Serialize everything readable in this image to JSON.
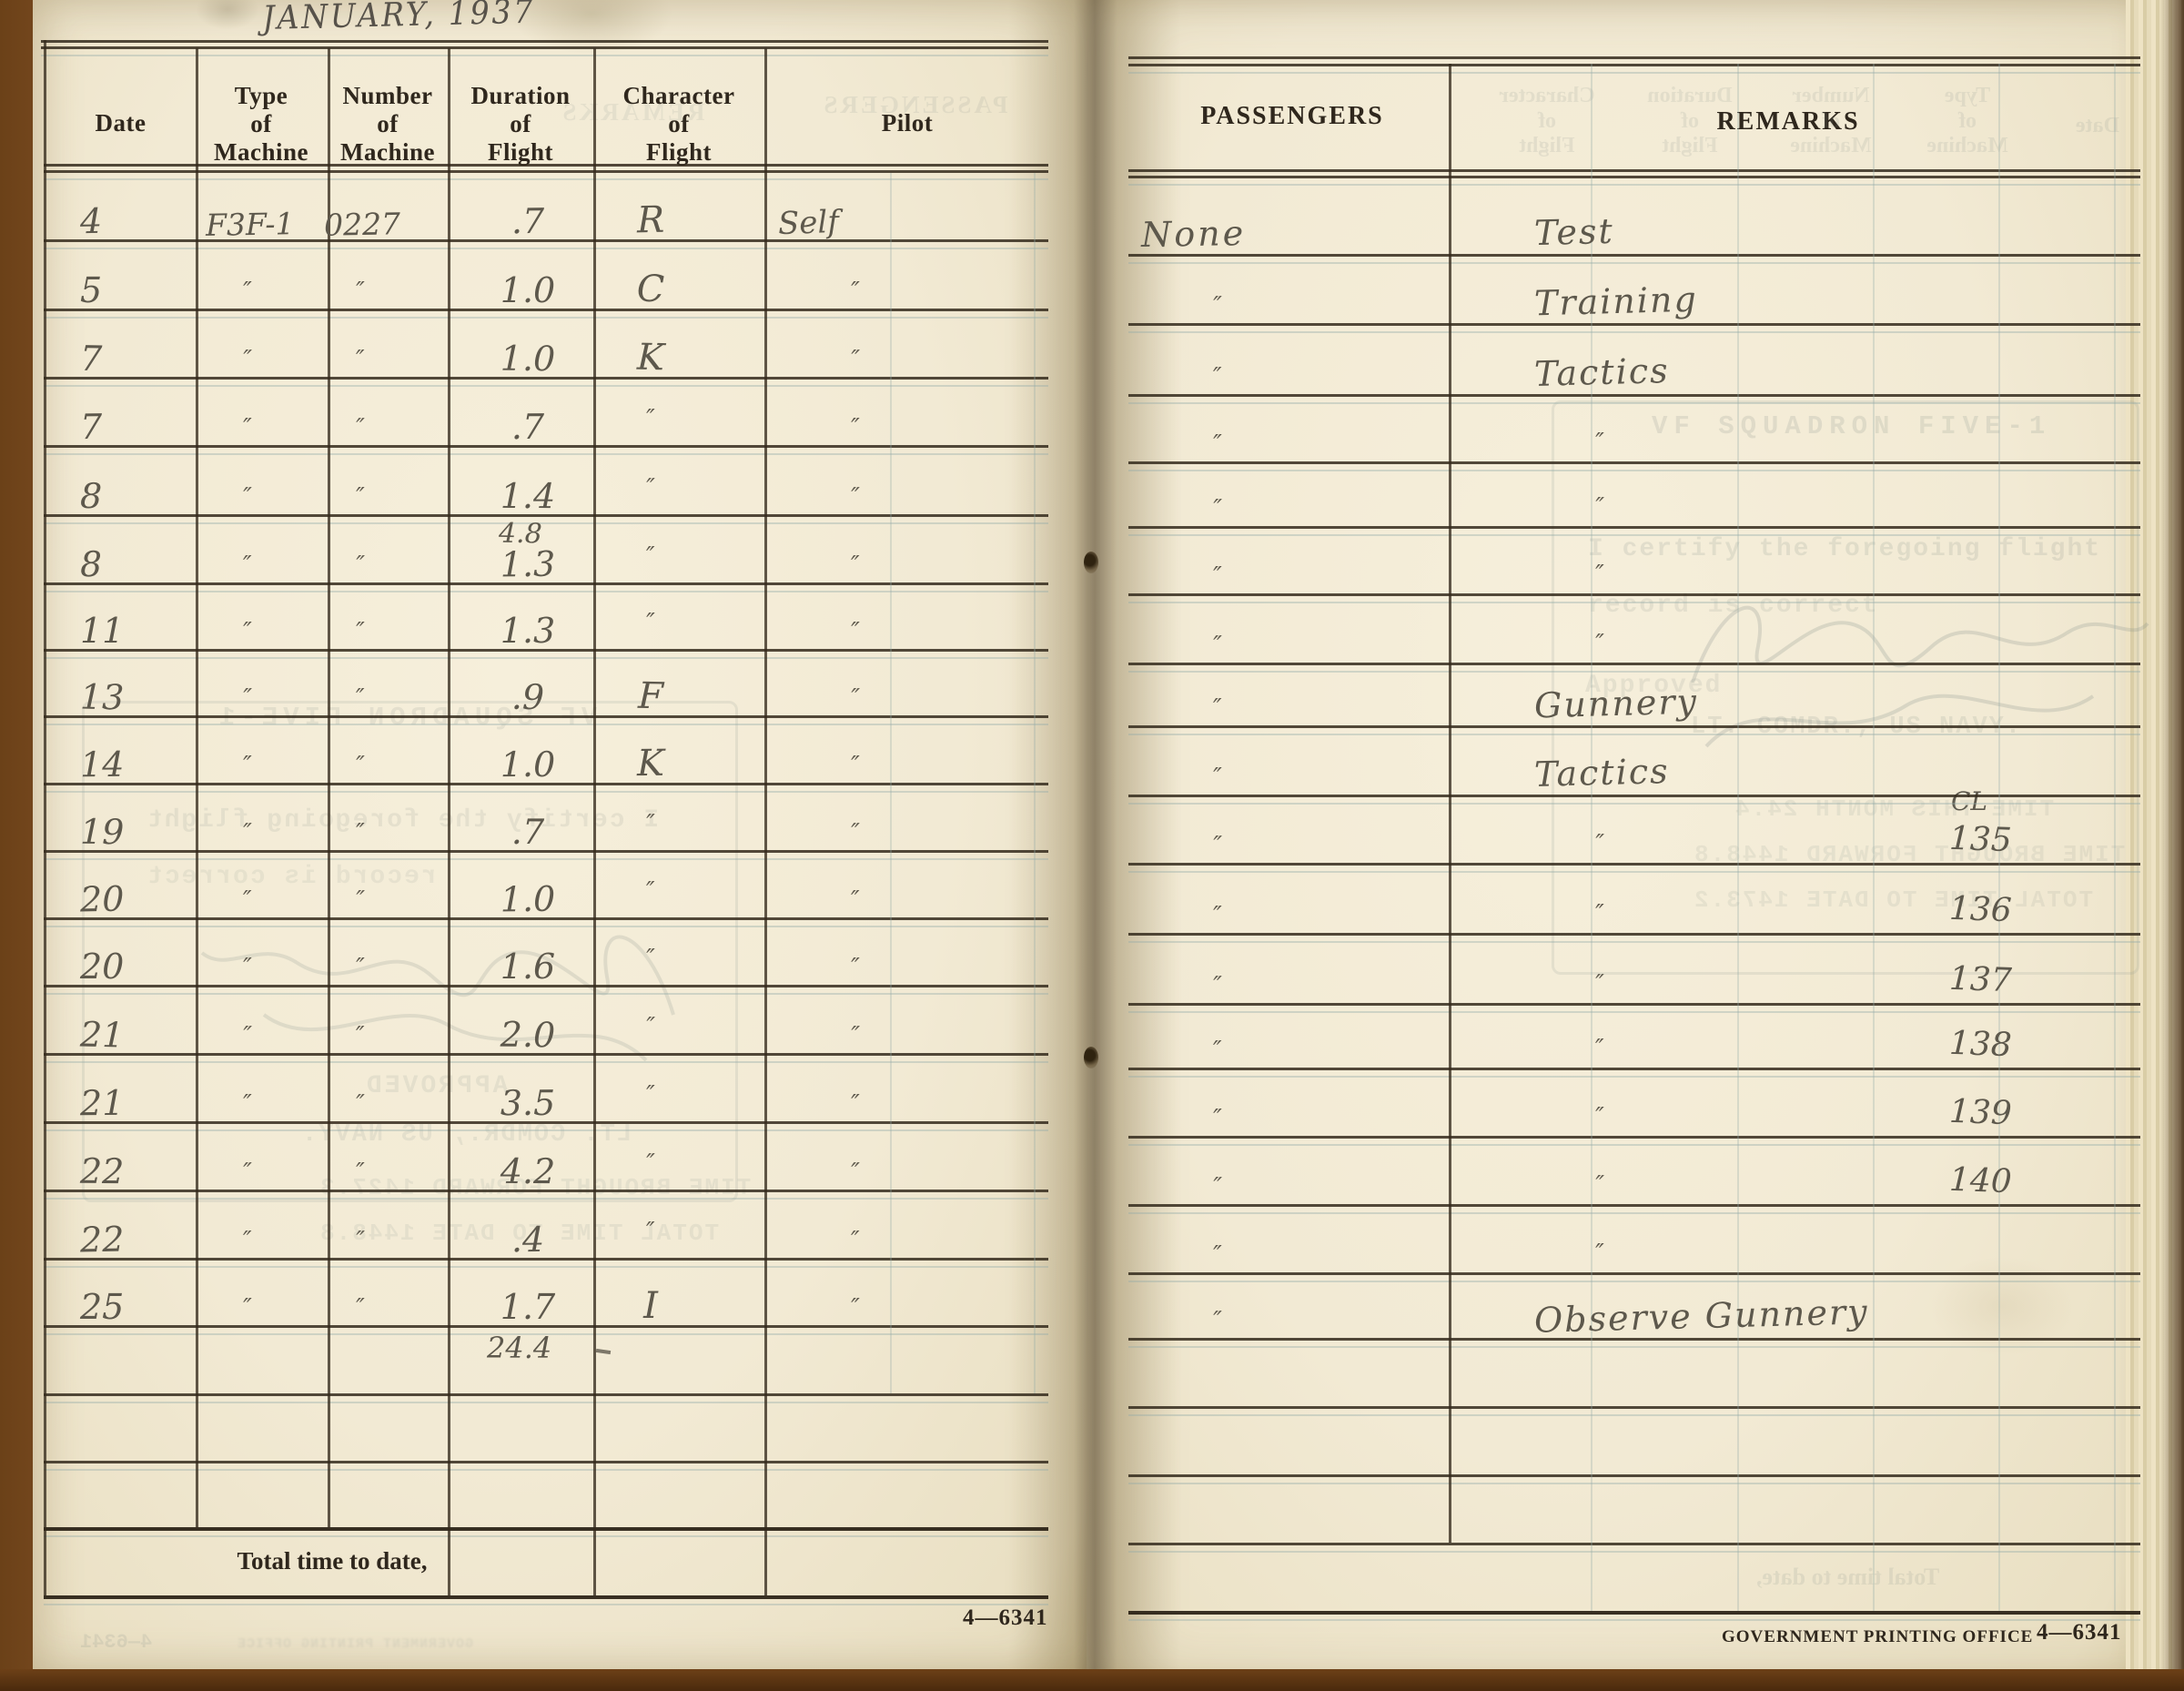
{
  "title": "JANUARY, 1937",
  "colors": {
    "paper": "#f2ead4",
    "cover_brown": "#7a4a20",
    "pencil": "#5d584c",
    "ink": "#2f271d",
    "ghost": "#7f8b87"
  },
  "left_page": {
    "headers": [
      "Date",
      "Type\nof\nMachine",
      "Number\nof\nMachine",
      "Duration\nof\nFlight",
      "Character\nof\nFlight",
      "Pilot"
    ],
    "rows": [
      {
        "date": "4",
        "type": "F3F-1",
        "number": "0227",
        "duration": ".7",
        "character": "R",
        "pilot": "Self"
      },
      {
        "date": "5",
        "type": "″",
        "number": "″",
        "duration": "1.0",
        "character": "C",
        "pilot": "″"
      },
      {
        "date": "7",
        "type": "″",
        "number": "″",
        "duration": "1.0",
        "character": "K",
        "pilot": "″"
      },
      {
        "date": "7",
        "type": "″",
        "number": "″",
        "duration": ".7",
        "character": "″",
        "pilot": "″"
      },
      {
        "date": "8",
        "type": "″",
        "number": "″",
        "duration": "1.4",
        "character": "″",
        "pilot": "″",
        "week_subtotal": "4.8"
      },
      {
        "date": "8",
        "type": "″",
        "number": "″",
        "duration": "1.3",
        "character": "″",
        "pilot": "″"
      },
      {
        "date": "11",
        "type": "″",
        "number": "″",
        "duration": "1.3",
        "character": "″",
        "pilot": "″"
      },
      {
        "date": "13",
        "type": "″",
        "number": "″",
        "duration": ".9",
        "character": "F",
        "pilot": "″"
      },
      {
        "date": "14",
        "type": "″",
        "number": "″",
        "duration": "1.0",
        "character": "K",
        "pilot": "″"
      },
      {
        "date": "19",
        "type": "″",
        "number": "″",
        "duration": ".7",
        "character": "″",
        "pilot": "″"
      },
      {
        "date": "20",
        "type": "″",
        "number": "″",
        "duration": "1.0",
        "character": "″",
        "pilot": "″"
      },
      {
        "date": "20",
        "type": "″",
        "number": "″",
        "duration": "1.6",
        "character": "″",
        "pilot": "″"
      },
      {
        "date": "21",
        "type": "″",
        "number": "″",
        "duration": "2.0",
        "character": "″",
        "pilot": "″"
      },
      {
        "date": "21",
        "type": "″",
        "number": "″",
        "duration": "3.5",
        "character": "″",
        "pilot": "″"
      },
      {
        "date": "22",
        "type": "″",
        "number": "″",
        "duration": "4.2",
        "character": "″",
        "pilot": "″"
      },
      {
        "date": "22",
        "type": "″",
        "number": "″",
        "duration": ".4",
        "character": "″",
        "pilot": "″"
      },
      {
        "date": "25",
        "type": "″",
        "number": "″",
        "duration": "1.7",
        "character": "I",
        "pilot": "″"
      }
    ],
    "month_total": "24.4",
    "total_label": "Total time to date,",
    "form_number": "4—6341"
  },
  "right_page": {
    "headers": [
      "PASSENGERS",
      "REMARKS"
    ],
    "rows": [
      {
        "passengers": "None",
        "remarks": "Test"
      },
      {
        "passengers": "″",
        "remarks": "Training"
      },
      {
        "passengers": "″",
        "remarks": "Tactics"
      },
      {
        "passengers": "″",
        "remarks": "″"
      },
      {
        "passengers": "″",
        "remarks": "″"
      },
      {
        "passengers": "″",
        "remarks": "″"
      },
      {
        "passengers": "″",
        "remarks": "″"
      },
      {
        "passengers": "″",
        "remarks": "Gunnery"
      },
      {
        "passengers": "″",
        "remarks": "Tactics"
      },
      {
        "passengers": "″",
        "remarks": "″",
        "flight_number": "135"
      },
      {
        "passengers": "″",
        "remarks": "″",
        "flight_number": "136"
      },
      {
        "passengers": "″",
        "remarks": "″",
        "flight_number": "137"
      },
      {
        "passengers": "″",
        "remarks": "″",
        "flight_number": "138"
      },
      {
        "passengers": "″",
        "remarks": "″",
        "flight_number": "139"
      },
      {
        "passengers": "″",
        "remarks": "″",
        "flight_number": "140"
      },
      {
        "passengers": "″",
        "remarks": "″"
      },
      {
        "passengers": "″",
        "remarks": "Observe Gunnery"
      }
    ],
    "cl_label": "CL",
    "printer": "GOVERNMENT PRINTING OFFICE",
    "form_number": "4—6341"
  },
  "ghosts": {
    "left": {
      "passengers": "PASSENGERS",
      "remarks": "REMARKS",
      "squadron": "VF SQUADRON FIVE-1",
      "certify": "I certify the foregoing flight",
      "record": "record is correct",
      "approved": "APPROVED",
      "rank": "LT. COMDR., US NAVY.",
      "brought_forward": "TIME BROUGHT FORWARD 1427.3",
      "total_to_date": "TOTAL TIME TO DATE 1448.8",
      "printer": "GOVERNMENT PRINTING OFFICE",
      "form_number": "4—6341"
    },
    "right": {
      "headers": [
        "Character\nof\nFlight",
        "Duration\nof\nFlight",
        "Number\nof\nMachine",
        "Type\nof\nMachine",
        "Date"
      ],
      "squadron": "VF SQUADRON FIVE-1",
      "certify": "I certify the foregoing flight",
      "record": "record is correct",
      "approved": "Approved",
      "rank": "LT. COMDR., US NAVY.",
      "month_time": "TIME THIS MONTH 24.4",
      "brought_forward": "TIME BROUGHT FORWARD 1448.8",
      "total_to_date": "TOTAL TIME TO DATE 1473.2",
      "total_label": "Total time to date,"
    }
  }
}
